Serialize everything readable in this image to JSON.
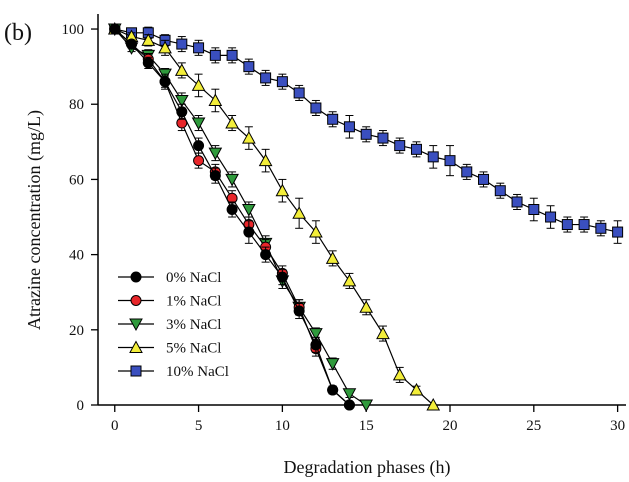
{
  "panel_label": "(b)",
  "chart_data": {
    "type": "line",
    "xlabel": "Degradation phases (h)",
    "ylabel": "Atrazine concentration (mg/L)",
    "xlim": [
      -1,
      30.5
    ],
    "ylim": [
      0,
      104
    ],
    "xticks": [
      0,
      5,
      10,
      15,
      20,
      25,
      30
    ],
    "yticks": [
      0,
      20,
      40,
      60,
      80,
      100
    ],
    "grid": false,
    "legend_position": "bottom-left",
    "series": [
      {
        "name": "0% NaCl",
        "marker": "circle",
        "color": "#000000",
        "x": [
          0,
          1,
          2,
          3,
          4,
          5,
          6,
          7,
          8,
          9,
          10,
          11,
          12,
          13,
          14
        ],
        "y": [
          100,
          96,
          91,
          86,
          78,
          69,
          61,
          52,
          46,
          40,
          34,
          25,
          16,
          4,
          0
        ],
        "err": [
          0,
          1,
          1.5,
          1.5,
          2,
          2,
          2,
          2,
          3,
          2,
          2,
          2,
          2,
          1,
          0
        ]
      },
      {
        "name": "1% NaCl",
        "marker": "circle",
        "color": "#e8262a",
        "x": [
          0,
          1,
          2,
          3,
          4,
          5,
          6,
          7,
          8,
          9,
          10,
          11,
          12,
          13,
          14
        ],
        "y": [
          100,
          96,
          92,
          86,
          75,
          65,
          62,
          55,
          48,
          42,
          35,
          26,
          15,
          4,
          0
        ],
        "err": [
          0,
          1,
          1.5,
          2,
          2,
          2,
          2,
          2,
          2,
          2,
          2,
          2,
          2,
          1,
          0
        ]
      },
      {
        "name": "3% NaCl",
        "marker": "triangle-down",
        "color": "#2f9a3c",
        "x": [
          0,
          1,
          2,
          3,
          4,
          5,
          6,
          7,
          8,
          9,
          10,
          11,
          12,
          13,
          14,
          15
        ],
        "y": [
          100,
          95,
          93,
          88,
          81,
          75,
          67,
          60,
          52,
          43,
          33,
          26,
          19,
          11,
          3,
          0
        ],
        "err": [
          0,
          1,
          1.5,
          1.5,
          2,
          2,
          2,
          2,
          2,
          2,
          2,
          2,
          1.5,
          1.5,
          1,
          0
        ]
      },
      {
        "name": "5% NaCl",
        "marker": "triangle-up",
        "color": "#f3ee3a",
        "x": [
          0,
          1,
          2,
          3,
          4,
          5,
          6,
          7,
          8,
          9,
          10,
          11,
          12,
          13,
          14,
          15,
          16,
          17,
          18,
          19
        ],
        "y": [
          100,
          98,
          97,
          95,
          89,
          85,
          81,
          75,
          71,
          65,
          57,
          51,
          46,
          39,
          33,
          26,
          19,
          8,
          4,
          0
        ],
        "err": [
          0,
          1,
          1.5,
          2,
          2,
          3,
          3,
          2,
          3,
          3,
          3,
          4,
          3,
          2,
          2,
          2,
          2,
          2,
          1,
          0
        ]
      },
      {
        "name": "10% NaCl",
        "marker": "square",
        "color": "#3a4fbf",
        "x": [
          0,
          1,
          2,
          3,
          4,
          5,
          6,
          7,
          8,
          9,
          10,
          11,
          12,
          13,
          14,
          15,
          16,
          17,
          18,
          19,
          20,
          21,
          22,
          23,
          24,
          25,
          26,
          27,
          28,
          29,
          30
        ],
        "y": [
          100,
          99,
          99,
          97,
          96,
          95,
          93,
          93,
          90,
          87,
          86,
          83,
          79,
          76,
          74,
          72,
          71,
          69,
          68,
          66,
          65,
          62,
          60,
          57,
          54,
          52,
          50,
          48,
          48,
          47,
          46
        ],
        "err": [
          0,
          1,
          1.5,
          1.5,
          2,
          2,
          2,
          2,
          2,
          2,
          2,
          2,
          2,
          2,
          3,
          2,
          2,
          2,
          2,
          3,
          4,
          2,
          2,
          2,
          2,
          3,
          3,
          2,
          2,
          2,
          3
        ]
      }
    ]
  }
}
